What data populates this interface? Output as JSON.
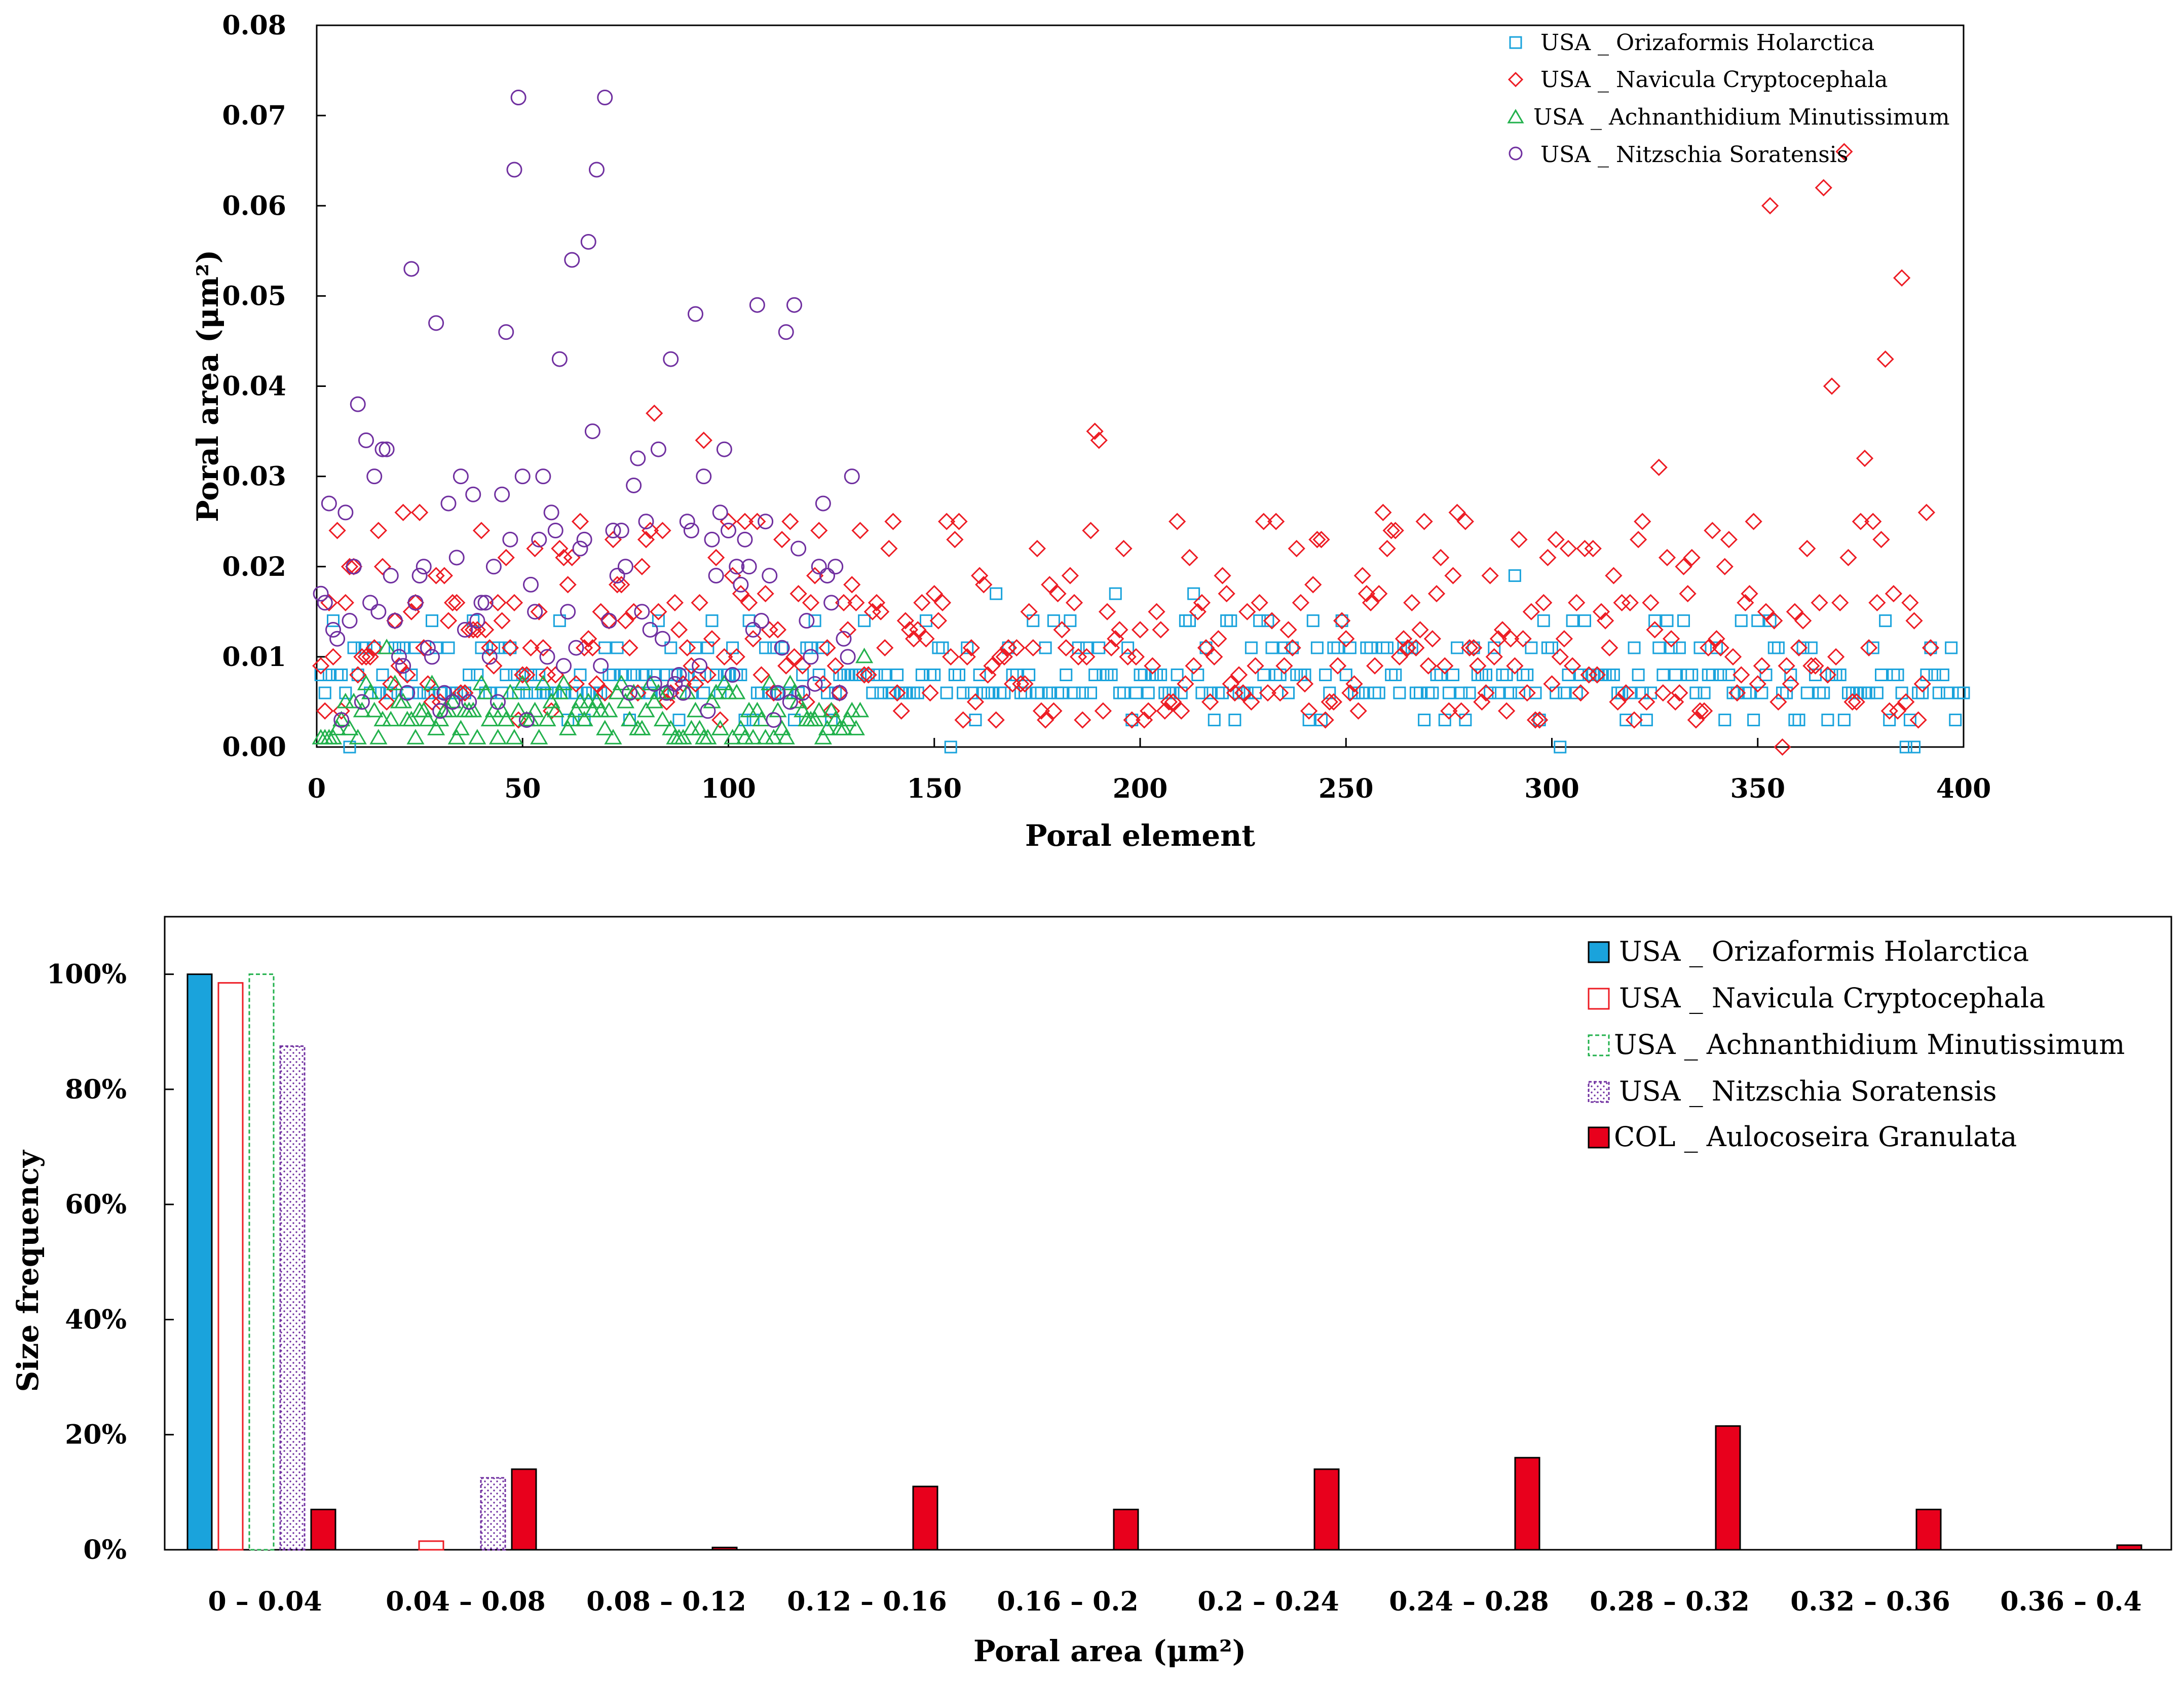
{
  "colors": {
    "orizaformis": "#1aa3dc",
    "navicula": "#ed1c24",
    "achnanthidium": "#22b14c",
    "nitzschia": "#7030a0",
    "aulocoseira": "#e8001c"
  },
  "chart_data": [
    {
      "type": "scatter",
      "title": "",
      "xlabel": "Poral element",
      "ylabel": "Poral area (μm²)",
      "xlim": [
        0,
        400
      ],
      "ylim": [
        0,
        0.08
      ],
      "xticks": [
        "0",
        "50",
        "100",
        "150",
        "200",
        "250",
        "300",
        "350",
        "400"
      ],
      "yticks": [
        "0.00",
        "0.01",
        "0.02",
        "0.03",
        "0.04",
        "0.05",
        "0.06",
        "0.07",
        "0.08"
      ],
      "legend_position": "top-right",
      "series": [
        {
          "name": "USA _ Orizaformis Holarctica",
          "marker": "square",
          "n_points": 400,
          "description_of_values": "most values between 0.003 and 0.011, occasional to 0.019",
          "highlights": [
            {
              "x": 8,
              "y": 0.0
            },
            {
              "x": 154,
              "y": 0.0
            },
            {
              "x": 165,
              "y": 0.017
            },
            {
              "x": 194,
              "y": 0.017
            },
            {
              "x": 213,
              "y": 0.017
            },
            {
              "x": 291,
              "y": 0.019
            },
            {
              "x": 302,
              "y": 0.0
            },
            {
              "x": 386,
              "y": 0.0
            },
            {
              "x": 388,
              "y": 0.0
            }
          ]
        },
        {
          "name": "USA _ Navicula Cryptocephala",
          "marker": "diamond",
          "n_points": 392,
          "description_of_values": "most values between 0.003 and 0.025",
          "highlights": [
            {
              "x": 82,
              "y": 0.037
            },
            {
              "x": 94,
              "y": 0.034
            },
            {
              "x": 189,
              "y": 0.035
            },
            {
              "x": 190,
              "y": 0.034
            },
            {
              "x": 326,
              "y": 0.031
            },
            {
              "x": 353,
              "y": 0.06
            },
            {
              "x": 356,
              "y": 0.0
            },
            {
              "x": 366,
              "y": 0.062
            },
            {
              "x": 368,
              "y": 0.04
            },
            {
              "x": 371,
              "y": 0.066
            },
            {
              "x": 376,
              "y": 0.032
            },
            {
              "x": 381,
              "y": 0.043
            },
            {
              "x": 385,
              "y": 0.052
            }
          ]
        },
        {
          "name": "USA _ Achnanthidium Minutissimum",
          "marker": "triangle",
          "n_points": 133,
          "description_of_values": "values between 0.0 and 0.011",
          "highlights": [
            {
              "x": 17,
              "y": 0.011
            },
            {
              "x": 133,
              "y": 0.01
            }
          ]
        },
        {
          "name": "USA _ Nitzschia Soratensis",
          "marker": "circle",
          "n_points": 130,
          "description_of_values": "values between 0.003 and 0.072",
          "highlights": [
            {
              "x": 10,
              "y": 0.038
            },
            {
              "x": 23,
              "y": 0.053
            },
            {
              "x": 29,
              "y": 0.047
            },
            {
              "x": 46,
              "y": 0.046
            },
            {
              "x": 48,
              "y": 0.064
            },
            {
              "x": 49,
              "y": 0.072
            },
            {
              "x": 59,
              "y": 0.043
            },
            {
              "x": 62,
              "y": 0.054
            },
            {
              "x": 66,
              "y": 0.056
            },
            {
              "x": 67,
              "y": 0.035
            },
            {
              "x": 68,
              "y": 0.064
            },
            {
              "x": 70,
              "y": 0.072
            },
            {
              "x": 86,
              "y": 0.043
            },
            {
              "x": 92,
              "y": 0.048
            },
            {
              "x": 107,
              "y": 0.049
            },
            {
              "x": 114,
              "y": 0.046
            },
            {
              "x": 116,
              "y": 0.049
            }
          ]
        }
      ]
    },
    {
      "type": "bar",
      "title": "",
      "xlabel": "Poral area (μm²)",
      "ylabel": "Size frequency",
      "ylim": [
        0,
        1.1
      ],
      "yticks": [
        "0%",
        "20%",
        "40%",
        "60%",
        "80%",
        "100%"
      ],
      "legend_position": "top-right",
      "categories": [
        "0 – 0.04",
        "0.04 – 0.08",
        "0.08 – 0.12",
        "0.12 – 0.16",
        "0.16 – 0.2",
        "0.2 – 0.24",
        "0.24 – 0.28",
        "0.28 – 0.32",
        "0.32 – 0.36",
        "0.36 – 0.4"
      ],
      "series": [
        {
          "name": "USA _ Orizaformis Holarctica",
          "style": "solid-cyan",
          "values": [
            1.0,
            0,
            0,
            0,
            0,
            0,
            0,
            0,
            0,
            0
          ]
        },
        {
          "name": "USA _ Navicula Cryptocephala",
          "style": "outline-red",
          "values": [
            0.985,
            0.015,
            0,
            0,
            0,
            0,
            0,
            0,
            0,
            0
          ]
        },
        {
          "name": "USA _ Achnanthidium Minutissimum",
          "style": "dashed-green",
          "values": [
            1.0,
            0,
            0,
            0,
            0,
            0,
            0,
            0,
            0,
            0
          ]
        },
        {
          "name": "USA _ Nitzschia Soratensis",
          "style": "dotted-purple",
          "values": [
            0.875,
            0.125,
            0,
            0,
            0,
            0,
            0,
            0,
            0,
            0
          ]
        },
        {
          "name": "COL _ Aulocoseira Granulata",
          "style": "solid-red",
          "values": [
            0.07,
            0.14,
            0.004,
            0.11,
            0.07,
            0.14,
            0.16,
            0.215,
            0.07,
            0.008
          ]
        }
      ]
    }
  ]
}
